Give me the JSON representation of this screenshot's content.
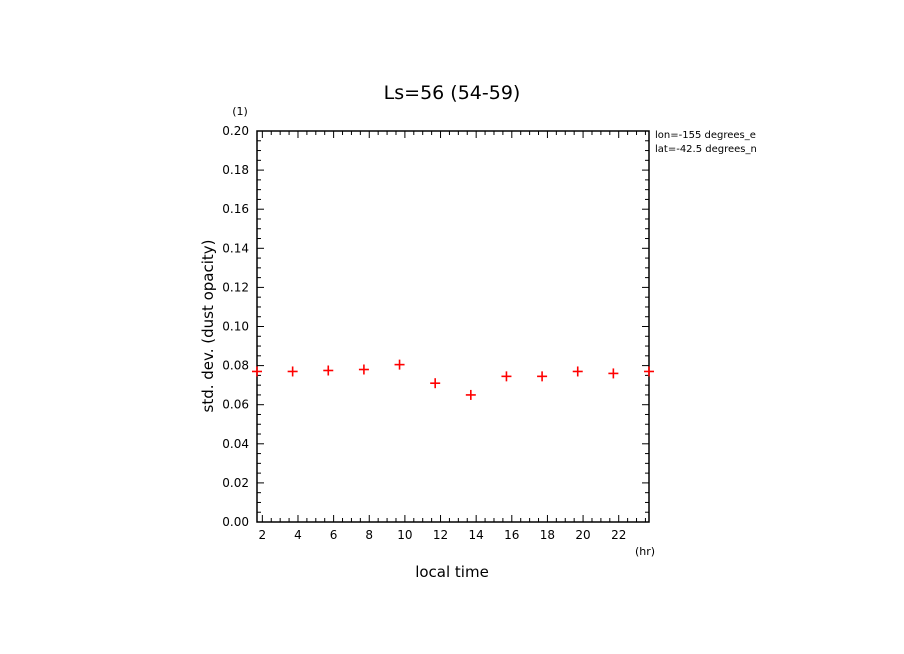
{
  "chart_data": {
    "type": "scatter",
    "title": "Ls=56 (54-59)",
    "xlabel": "local time",
    "ylabel": "std. dev. (dust opacity)",
    "x_unit": "(hr)",
    "y_unit": "(1)",
    "annotations": [
      "lon=-155 degrees_e",
      "lat=-42.5 degrees_n"
    ],
    "xlim": [
      1.7,
      23.7
    ],
    "ylim": [
      0,
      0.2
    ],
    "x_ticks": [
      2,
      4,
      6,
      8,
      10,
      12,
      14,
      16,
      18,
      20,
      22
    ],
    "x_tick_labels": [
      "2",
      "4",
      "6",
      "8",
      "10",
      "12",
      "14",
      "16",
      "18",
      "20",
      "22"
    ],
    "y_ticks": [
      0,
      0.02,
      0.04,
      0.06,
      0.08,
      0.1,
      0.12,
      0.14,
      0.16,
      0.18,
      0.2
    ],
    "y_tick_labels": [
      "0.00",
      "0.02",
      "0.04",
      "0.06",
      "0.08",
      "0.10",
      "0.12",
      "0.14",
      "0.16",
      "0.18",
      "0.20"
    ],
    "marker": "+",
    "marker_color": "#ff0000",
    "grid": false,
    "series": [
      {
        "x": [
          1.7,
          3.7,
          5.7,
          7.7,
          9.7,
          11.7,
          13.7,
          15.7,
          17.7,
          19.7,
          21.7,
          23.7
        ],
        "y": [
          0.077,
          0.077,
          0.0775,
          0.078,
          0.0805,
          0.071,
          0.065,
          0.0745,
          0.0745,
          0.077,
          0.076,
          0.077
        ]
      }
    ]
  }
}
